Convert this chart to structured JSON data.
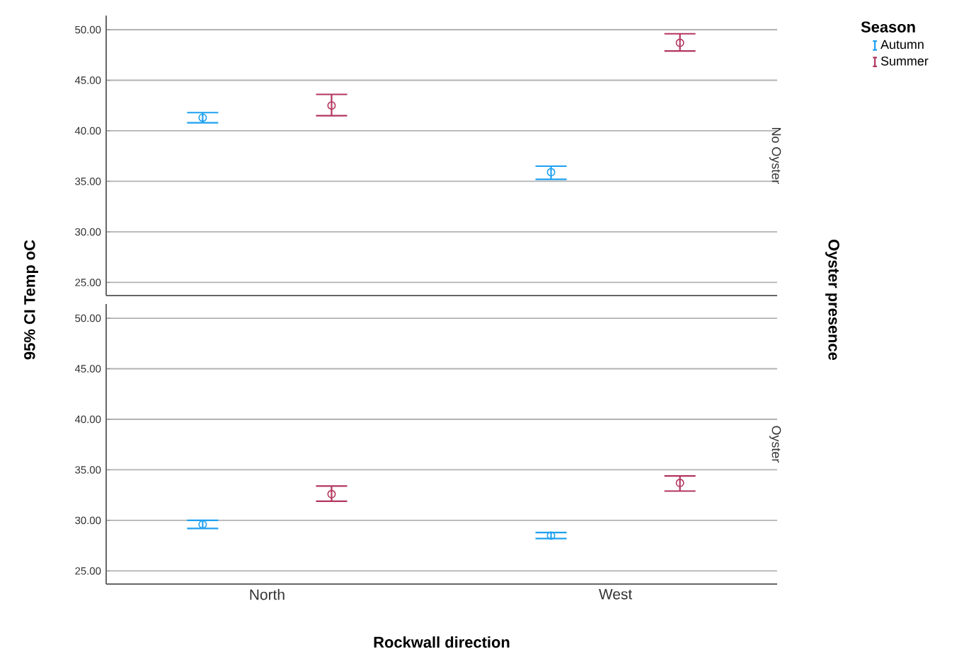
{
  "chart_data": [
    {
      "type": "scatter",
      "title": "No Oyster",
      "ylabel": "95% CI Temp oC",
      "y2label": "Oyster presence",
      "legend_title": "Season",
      "legend": "right",
      "categories": [
        null,
        null
      ],
      "marker": "circle",
      "grid": "y",
      "tick_labels": "y",
      "ylim": [
        23.7,
        51.4
      ],
      "yticks": [
        {
          "value": 25,
          "label": "25.00"
        },
        {
          "value": 30,
          "label": "30.00"
        },
        {
          "value": 35,
          "label": "35.00"
        },
        {
          "value": 40,
          "label": "40.00"
        },
        {
          "value": 45,
          "label": "45.00"
        },
        {
          "value": 50,
          "label": "50.00"
        }
      ],
      "series": [
        {
          "name": "Autumn",
          "color": "#1ea0f0",
          "values": [
            41.3,
            35.9
          ],
          "errors": [
            [
              40.8,
              41.8
            ],
            [
              35.2,
              36.5
            ]
          ]
        },
        {
          "name": "Summer",
          "color": "#b3365e",
          "values": [
            42.5,
            48.7
          ],
          "errors": [
            [
              41.5,
              43.6
            ],
            [
              47.9,
              49.6
            ]
          ]
        }
      ]
    },
    {
      "type": "scatter",
      "title": "Oyster",
      "xlabel": "Rockwall direction",
      "categories": [
        "North",
        "West"
      ],
      "marker": "circle",
      "grid": "y",
      "ylim": [
        23.7,
        51.4
      ],
      "yticks": [
        {
          "value": 25,
          "label": "25.00"
        },
        {
          "value": 30,
          "label": "30.00"
        },
        {
          "value": 35,
          "label": "35.00"
        },
        {
          "value": 40,
          "label": "40.00"
        },
        {
          "value": 45,
          "label": "45.00"
        },
        {
          "value": 50,
          "label": "50.00"
        }
      ],
      "series": [
        {
          "color": "#1ea0f0",
          "values": [
            29.6,
            28.5
          ],
          "errors": [
            [
              29.2,
              30.0
            ],
            [
              28.2,
              28.8
            ]
          ]
        },
        {
          "color": "#b3365e",
          "values": [
            32.6,
            33.7
          ],
          "errors": [
            [
              31.9,
              33.4
            ],
            [
              32.9,
              34.4
            ]
          ]
        }
      ]
    }
  ]
}
